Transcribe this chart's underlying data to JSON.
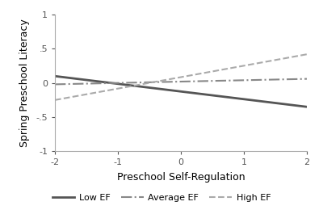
{
  "title": "",
  "xlabel": "Preschool Self-Regulation",
  "ylabel": "Spring Preschool Literacy",
  "xlim": [
    -2,
    2
  ],
  "ylim": [
    -1,
    1
  ],
  "xticks": [
    -2,
    -1,
    0,
    1,
    2
  ],
  "yticks": [
    -1,
    -0.5,
    0,
    0.5,
    1
  ],
  "ytick_labels": [
    "-1",
    "-.5",
    "0",
    ".5",
    "1"
  ],
  "xtick_labels": [
    "-2",
    "-1",
    "0",
    "1",
    "2"
  ],
  "lines": [
    {
      "label": "Low EF",
      "x": [
        -2,
        2
      ],
      "y": [
        0.1,
        -0.35
      ],
      "color": "#555555",
      "linestyle": "solid",
      "linewidth": 2.0
    },
    {
      "label": "Average EF",
      "x": [
        -2,
        2
      ],
      "y": [
        -0.02,
        0.06
      ],
      "color": "#888888",
      "linestyle": "dashdot",
      "linewidth": 1.5
    },
    {
      "label": "High EF",
      "x": [
        -2,
        2
      ],
      "y": [
        -0.25,
        0.42
      ],
      "color": "#aaaaaa",
      "linestyle": "dashed",
      "linewidth": 1.5
    }
  ],
  "legend_fontsize": 8,
  "axis_label_fontsize": 9,
  "tick_fontsize": 8,
  "background_color": "#ffffff",
  "spine_color": "#aaaaaa",
  "grid": false
}
